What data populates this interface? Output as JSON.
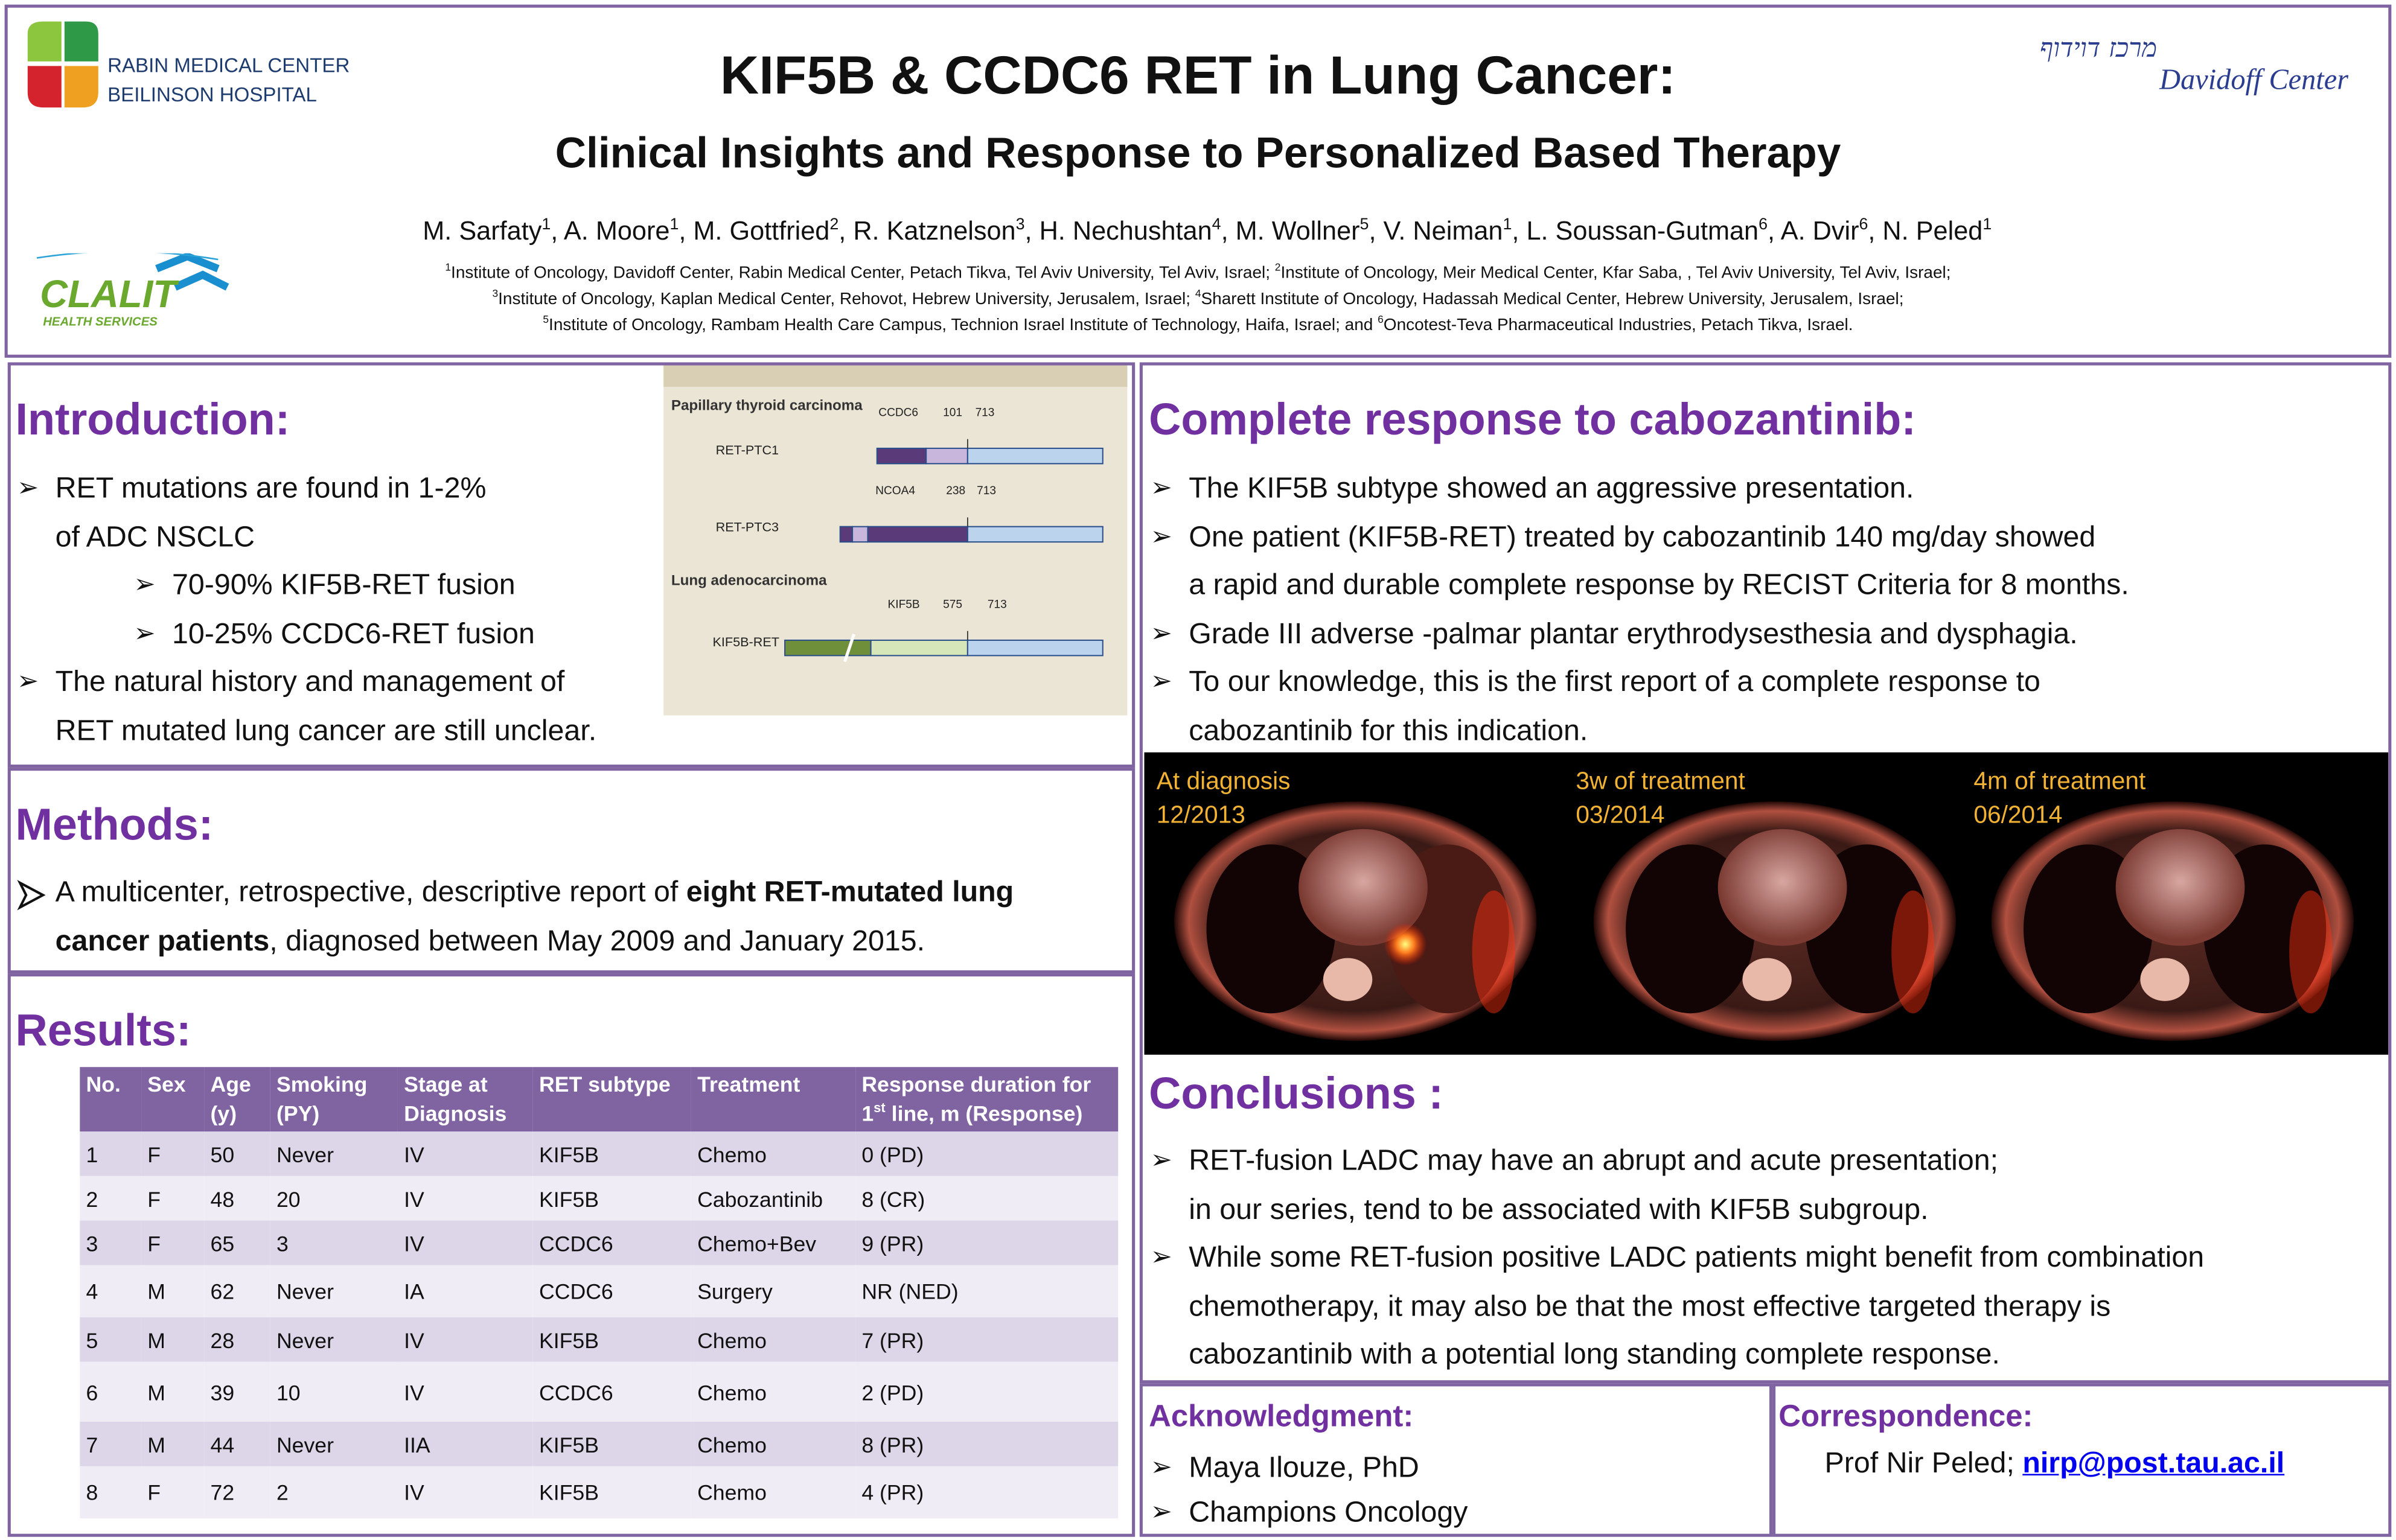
{
  "header": {
    "title": "KIF5B & CCDC6 RET in Lung Cancer:",
    "subtitle": "Clinical Insights and Response to Personalized Based Therapy",
    "authors": [
      {
        "name": "M. Sarfaty",
        "sup": "1"
      },
      {
        "name": "A. Moore",
        "sup": "1"
      },
      {
        "name": "M. Gottfried",
        "sup": "2"
      },
      {
        "name": "R. Katznelson",
        "sup": "3"
      },
      {
        "name": "H. Nechushtan",
        "sup": "4"
      },
      {
        "name": "M. Wollner",
        "sup": "5"
      },
      {
        "name": "V. Neiman",
        "sup": "1"
      },
      {
        "name": "L. Soussan-Gutman",
        "sup": "6"
      },
      {
        "name": "A. Dvir",
        "sup": "6"
      },
      {
        "name": "N. Peled",
        "sup": "1"
      }
    ],
    "affiliations": [
      [
        {
          "sup": "1",
          "text": "Institute of Oncology, Davidoff Center, Rabin Medical Center, Petach Tikva, Tel Aviv University, Tel Aviv, Israel; "
        },
        {
          "sup": "2",
          "text": "Institute of Oncology, Meir Medical Center, Kfar Saba, , Tel Aviv University, Tel Aviv, Israel;"
        }
      ],
      [
        {
          "sup": "3",
          "text": "Institute of Oncology, Kaplan Medical Center, Rehovot, Hebrew University, Jerusalem, Israel; "
        },
        {
          "sup": "4",
          "text": "Sharett Institute of Oncology, Hadassah Medical Center, Hebrew University, Jerusalem, Israel;"
        }
      ],
      [
        {
          "sup": "5",
          "text": "Institute of Oncology, Rambam Health Care Campus, Technion Israel Institute of Technology, Haifa, Israel; and "
        },
        {
          "sup": "6",
          "text": "Oncotest-Teva Pharmaceutical Industries, Petach Tikva, Israel."
        }
      ]
    ],
    "logos": {
      "rabin": [
        "RABIN MEDICAL CENTER",
        "BEILINSON HOSPITAL"
      ],
      "davidoff_hebrew": "מרכז דוידוף",
      "davidoff": "Davidoff Center",
      "clalit": "CLALIT",
      "clalit_sub": "HEALTH SERVICES"
    }
  },
  "introduction": {
    "heading": "Introduction:",
    "bullets": [
      {
        "level": 1,
        "lines": [
          "RET mutations are found in 1-2%",
          "of ADC NSCLC"
        ]
      },
      {
        "level": 2,
        "lines": [
          "70-90% KIF5B-RET fusion"
        ]
      },
      {
        "level": 2,
        "lines": [
          "10-25% CCDC6-RET fusion"
        ]
      },
      {
        "level": 1,
        "lines": [
          "The natural history and management of",
          "RET mutated lung cancer are still unclear."
        ]
      }
    ],
    "figure": {
      "sections": [
        {
          "title": "Papillary thyroid carcinoma",
          "rows": [
            {
              "label": "RET-PTC1",
              "partner": "CCDC6",
              "marks": [
                "101",
                "713"
              ]
            },
            {
              "label": "RET-PTC3",
              "partner": "NCOA4",
              "marks": [
                "238",
                "713"
              ]
            }
          ]
        },
        {
          "title": "Lung adenocarcinoma",
          "rows": [
            {
              "label": "KIF5B-RET",
              "partner": "KIF5B",
              "marks": [
                "575",
                "713"
              ]
            }
          ]
        }
      ]
    }
  },
  "methods": {
    "heading": "Methods:",
    "parts": [
      {
        "text": "A multicenter, retrospective, descriptive report of ",
        "bold": false
      },
      {
        "text": "eight RET-mutated lung cancer patients",
        "bold": true
      },
      {
        "text": ", diagnosed between May 2009 and January 2015.",
        "bold": false
      }
    ]
  },
  "results": {
    "heading": "Results:",
    "table": {
      "header": [
        "No.",
        "Sex",
        "Age (y)",
        "Smoking (PY)",
        "Stage at Diagnosis",
        "RET subtype",
        "Treatment",
        [
          {
            "text": "Response duration for 1"
          },
          {
            "text": "st",
            "sup": true
          },
          {
            "text": " line, m (Response)"
          }
        ]
      ],
      "rows": [
        [
          1,
          "F",
          50,
          "Never",
          "IV",
          "KIF5B",
          "Chemo",
          "0 (PD)"
        ],
        [
          2,
          "F",
          48,
          20,
          "IV",
          "KIF5B",
          "Cabozantinib",
          "8 (CR)"
        ],
        [
          3,
          "F",
          65,
          3,
          "IV",
          "CCDC6",
          "Chemo+Bev",
          "9 (PR)"
        ],
        [
          4,
          "M",
          62,
          "Never",
          "IA",
          "CCDC6",
          "Surgery",
          "NR (NED)"
        ],
        [
          5,
          "M",
          28,
          "Never",
          "IV",
          "KIF5B",
          "Chemo",
          "7 (PR)"
        ],
        [
          6,
          "M",
          39,
          10,
          "IV",
          "CCDC6",
          "Chemo",
          "2 (PD)"
        ],
        [
          7,
          "M",
          44,
          "Never",
          "IIA",
          "KIF5B",
          "Chemo",
          "8 (PR)"
        ],
        [
          8,
          "F",
          72,
          2,
          "IV",
          "KIF5B",
          "Chemo",
          "4 (PR)"
        ]
      ]
    }
  },
  "complete_response": {
    "heading": "Complete response to cabozantinib:",
    "bullets": [
      {
        "level": 1,
        "lines": [
          "The KIF5B subtype showed an aggressive presentation."
        ]
      },
      {
        "level": 1,
        "lines": [
          "One patient (KIF5B-RET) treated by cabozantinib 140 mg/day showed",
          "a rapid and durable complete response by RECIST Criteria for 8 months."
        ]
      },
      {
        "level": 1,
        "lines": [
          "Grade III adverse -palmar plantar erythrodysesthesia and dysphagia."
        ]
      },
      {
        "level": 1,
        "lines": [
          "To our knowledge, this is the first report of a complete response to",
          "cabozantinib for this indication."
        ]
      }
    ],
    "images": [
      {
        "label": "At diagnosis",
        "date": "12/2013"
      },
      {
        "label": "3w of treatment",
        "date": "03/2014"
      },
      {
        "label": "4m of treatment",
        "date": "06/2014"
      }
    ]
  },
  "conclusions": {
    "heading": "Conclusions :",
    "bullets": [
      {
        "level": 1,
        "lines": [
          "RET-fusion LADC may have an abrupt and acute presentation;",
          "in our series, tend to be associated with KIF5B subgroup."
        ]
      },
      {
        "level": 1,
        "lines": [
          "While some RET-fusion positive LADC patients might benefit from combination",
          "chemotherapy, it may also be that the most effective targeted therapy is",
          "cabozantinib with a potential long standing complete response."
        ]
      }
    ]
  },
  "acknowledgment": {
    "heading": "Acknowledgment:",
    "items": [
      "Maya Ilouze, PhD",
      "Champions Oncology"
    ]
  },
  "correspondence": {
    "heading": "Correspondence:",
    "name": "Prof Nir Peled;",
    "email": "nirp@post.tau.ac.il"
  }
}
